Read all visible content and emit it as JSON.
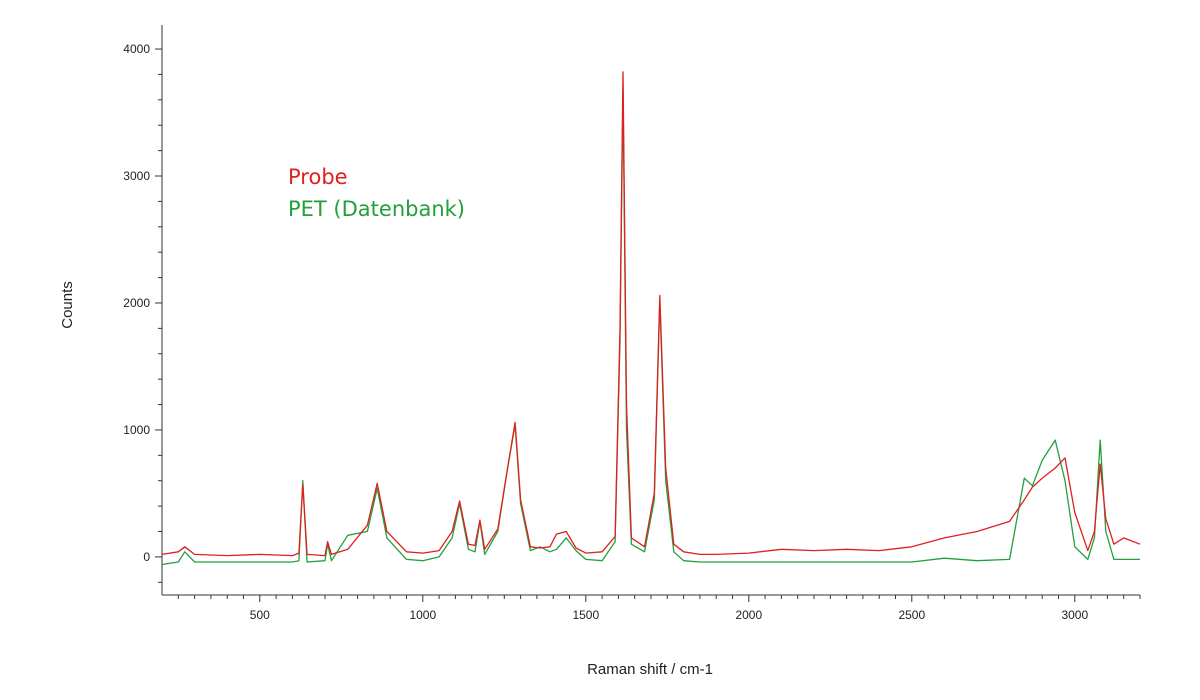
{
  "chart_data": {
    "type": "line",
    "title": "",
    "xlabel": "Raman shift / cm-1",
    "ylabel": "Counts",
    "xlim": [
      200,
      3200
    ],
    "ylim": [
      -300,
      4150
    ],
    "x_ticks": [
      500,
      1000,
      1500,
      2000,
      2500,
      3000
    ],
    "x_tick_labels": [
      "500",
      "1000",
      "1500",
      "2000",
      "2500",
      "3000"
    ],
    "y_ticks": [
      0,
      1000,
      2000,
      3000,
      4000
    ],
    "y_tick_labels": [
      "0",
      "1000",
      "2000",
      "3000",
      "4000"
    ],
    "grid": false,
    "legend_position": "top-left",
    "series": [
      {
        "name": "Probe",
        "color": "#e02020",
        "x": [
          200,
          250,
          270,
          300,
          400,
          500,
          600,
          620,
          632,
          645,
          700,
          708,
          720,
          770,
          830,
          860,
          890,
          950,
          1000,
          1050,
          1090,
          1113,
          1140,
          1160,
          1175,
          1190,
          1230,
          1260,
          1283,
          1300,
          1330,
          1360,
          1390,
          1410,
          1440,
          1470,
          1500,
          1550,
          1590,
          1605,
          1614,
          1625,
          1640,
          1680,
          1710,
          1727,
          1745,
          1770,
          1800,
          1850,
          1900,
          2000,
          2100,
          2200,
          2300,
          2400,
          2500,
          2600,
          2700,
          2800,
          2845,
          2870,
          2900,
          2940,
          2970,
          3000,
          3040,
          3060,
          3078,
          3095,
          3120,
          3150,
          3200
        ],
        "y": [
          20,
          40,
          80,
          20,
          10,
          20,
          10,
          30,
          570,
          20,
          10,
          120,
          20,
          60,
          250,
          580,
          200,
          40,
          30,
          50,
          200,
          440,
          100,
          90,
          290,
          60,
          220,
          700,
          1060,
          450,
          80,
          70,
          80,
          180,
          200,
          70,
          30,
          40,
          160,
          1800,
          3820,
          1200,
          150,
          80,
          500,
          2060,
          700,
          100,
          40,
          20,
          20,
          30,
          60,
          50,
          60,
          50,
          80,
          150,
          200,
          280,
          450,
          550,
          620,
          700,
          780,
          350,
          50,
          200,
          730,
          300,
          100,
          150,
          100
        ]
      },
      {
        "name": "PET (Datenbank)",
        "color": "#22a03c",
        "x": [
          200,
          250,
          270,
          300,
          400,
          500,
          600,
          620,
          632,
          645,
          700,
          708,
          720,
          770,
          830,
          860,
          890,
          950,
          1000,
          1050,
          1090,
          1113,
          1140,
          1160,
          1175,
          1190,
          1230,
          1260,
          1283,
          1300,
          1330,
          1360,
          1390,
          1410,
          1440,
          1470,
          1500,
          1550,
          1590,
          1605,
          1614,
          1625,
          1640,
          1680,
          1710,
          1727,
          1745,
          1770,
          1800,
          1850,
          1900,
          2000,
          2100,
          2200,
          2300,
          2400,
          2500,
          2600,
          2700,
          2800,
          2845,
          2870,
          2900,
          2940,
          2970,
          3000,
          3040,
          3060,
          3078,
          3095,
          3120,
          3150,
          3200
        ],
        "y": [
          -60,
          -40,
          40,
          -40,
          -40,
          -40,
          -40,
          -30,
          600,
          -40,
          -30,
          100,
          -30,
          170,
          200,
          540,
          150,
          -20,
          -30,
          0,
          150,
          420,
          60,
          40,
          280,
          20,
          200,
          700,
          1040,
          420,
          50,
          80,
          40,
          60,
          150,
          50,
          -20,
          -30,
          120,
          1700,
          3700,
          1000,
          100,
          40,
          450,
          2020,
          600,
          40,
          -30,
          -40,
          -40,
          -40,
          -40,
          -40,
          -40,
          -40,
          -40,
          -10,
          -30,
          -20,
          620,
          560,
          760,
          920,
          600,
          80,
          -20,
          150,
          920,
          200,
          -20,
          -20,
          -20
        ]
      }
    ]
  }
}
